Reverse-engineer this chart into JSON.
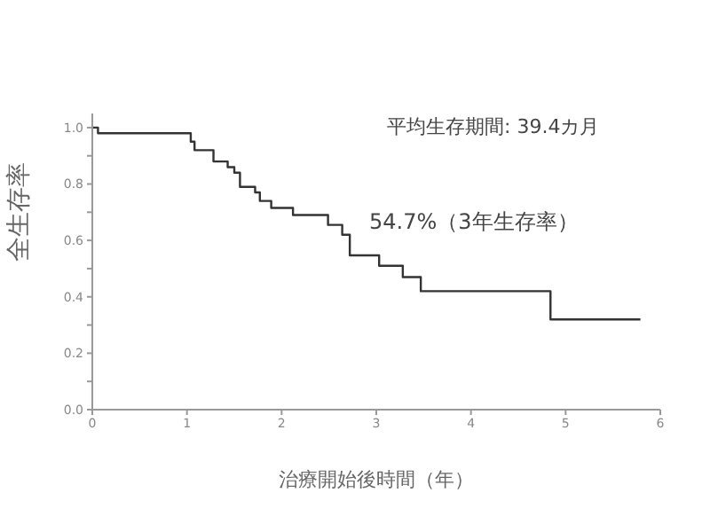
{
  "chart_data": {
    "type": "step",
    "xlabel": "治療開始後時間（年）",
    "ylabel": "全生存率",
    "annotations": [
      "平均生存期間: 39.4カ月",
      "54.7%（3年生存率）"
    ],
    "series": [
      {
        "color": "#333333",
        "x": [
          0,
          0.06,
          1.04,
          1.08,
          1.28,
          1.43,
          1.5,
          1.56,
          1.72,
          1.77,
          1.89,
          2.12,
          2.49,
          2.64,
          2.72,
          3.03,
          3.28,
          3.47,
          4.84,
          5.79
        ],
        "values": [
          1.0,
          0.98,
          0.95,
          0.92,
          0.88,
          0.86,
          0.84,
          0.79,
          0.77,
          0.74,
          0.715,
          0.69,
          0.655,
          0.62,
          0.547,
          0.51,
          0.47,
          0.42,
          0.32,
          0.32
        ]
      }
    ],
    "xlim": [
      0,
      6
    ],
    "xticks": [
      0,
      1,
      2,
      3,
      4,
      5,
      6
    ],
    "ylim": [
      0,
      1.05
    ],
    "yticks": [
      {
        "value": 0,
        "label": "0.0"
      },
      {
        "value": 0.1,
        "label": null
      },
      {
        "value": 0.2,
        "label": "0.2"
      },
      {
        "value": 0.3,
        "label": null
      },
      {
        "value": 0.4,
        "label": "0.4"
      },
      {
        "value": 0.5,
        "label": null
      },
      {
        "value": 0.6,
        "label": "0.6"
      },
      {
        "value": 0.7,
        "label": null
      },
      {
        "value": 0.8,
        "label": "0.8"
      },
      {
        "value": 0.9,
        "label": null
      },
      {
        "value": 1.0,
        "label": "1.0"
      }
    ],
    "marker": "none",
    "line_style": "solid",
    "grid": false,
    "legend": false
  }
}
